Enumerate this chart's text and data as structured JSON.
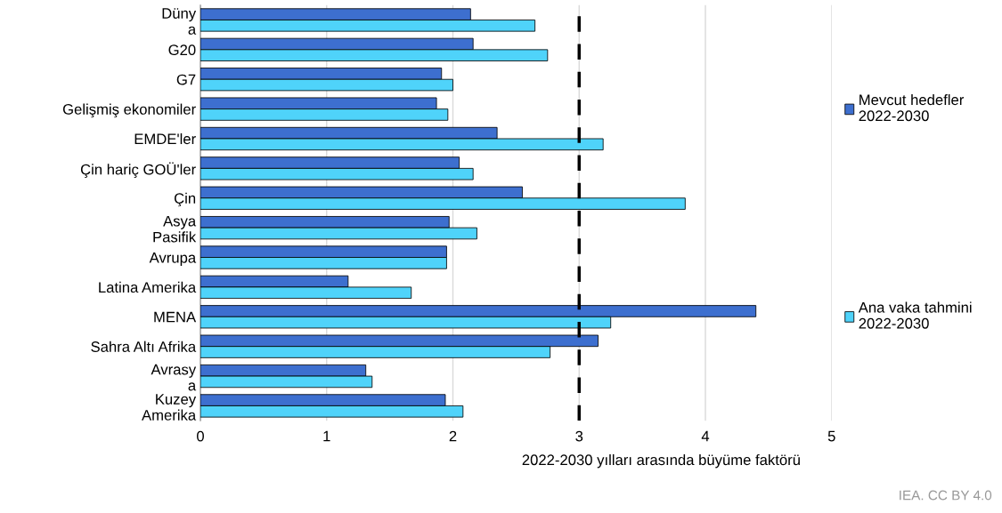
{
  "chart_data": {
    "type": "bar",
    "orientation": "horizontal",
    "categories": [
      "Düny\na",
      "G20",
      "G7",
      "Gelişmiş ekonomiler",
      "EMDE'ler",
      "Çin hariç GOÜ'ler",
      "Çin",
      "Asya\nPasifik",
      "Avrupa",
      "Latina Amerika",
      "MENA",
      "Sahra Altı Afrika",
      "Avrasy\na",
      "Kuzey\nAmerika"
    ],
    "series": [
      {
        "name": "Mevcut hedefler\n2022-2030",
        "color": "#3d6fcf",
        "values": [
          2.14,
          2.16,
          1.91,
          1.87,
          2.35,
          2.05,
          2.55,
          1.97,
          1.95,
          1.17,
          4.4,
          3.15,
          1.31,
          1.94
        ]
      },
      {
        "name": "Ana vaka tahmini\n2022-2030",
        "color": "#4fd3fa",
        "values": [
          2.65,
          2.75,
          2.0,
          1.96,
          3.19,
          2.16,
          3.84,
          2.19,
          1.95,
          1.67,
          3.25,
          2.77,
          1.36,
          2.08
        ]
      }
    ],
    "xlim": [
      0,
      5
    ],
    "xticks": [
      0,
      1,
      2,
      3,
      4,
      5
    ],
    "xlabel": "2022-2030 yılları arasında büyüme faktörü",
    "grid": "x",
    "legend": "right",
    "ref_lines": [
      {
        "axis": "x",
        "value": 3,
        "color": "#000000",
        "line_style": "dashed"
      }
    ],
    "annotations": [
      "IEA. CC BY 4.0"
    ]
  }
}
